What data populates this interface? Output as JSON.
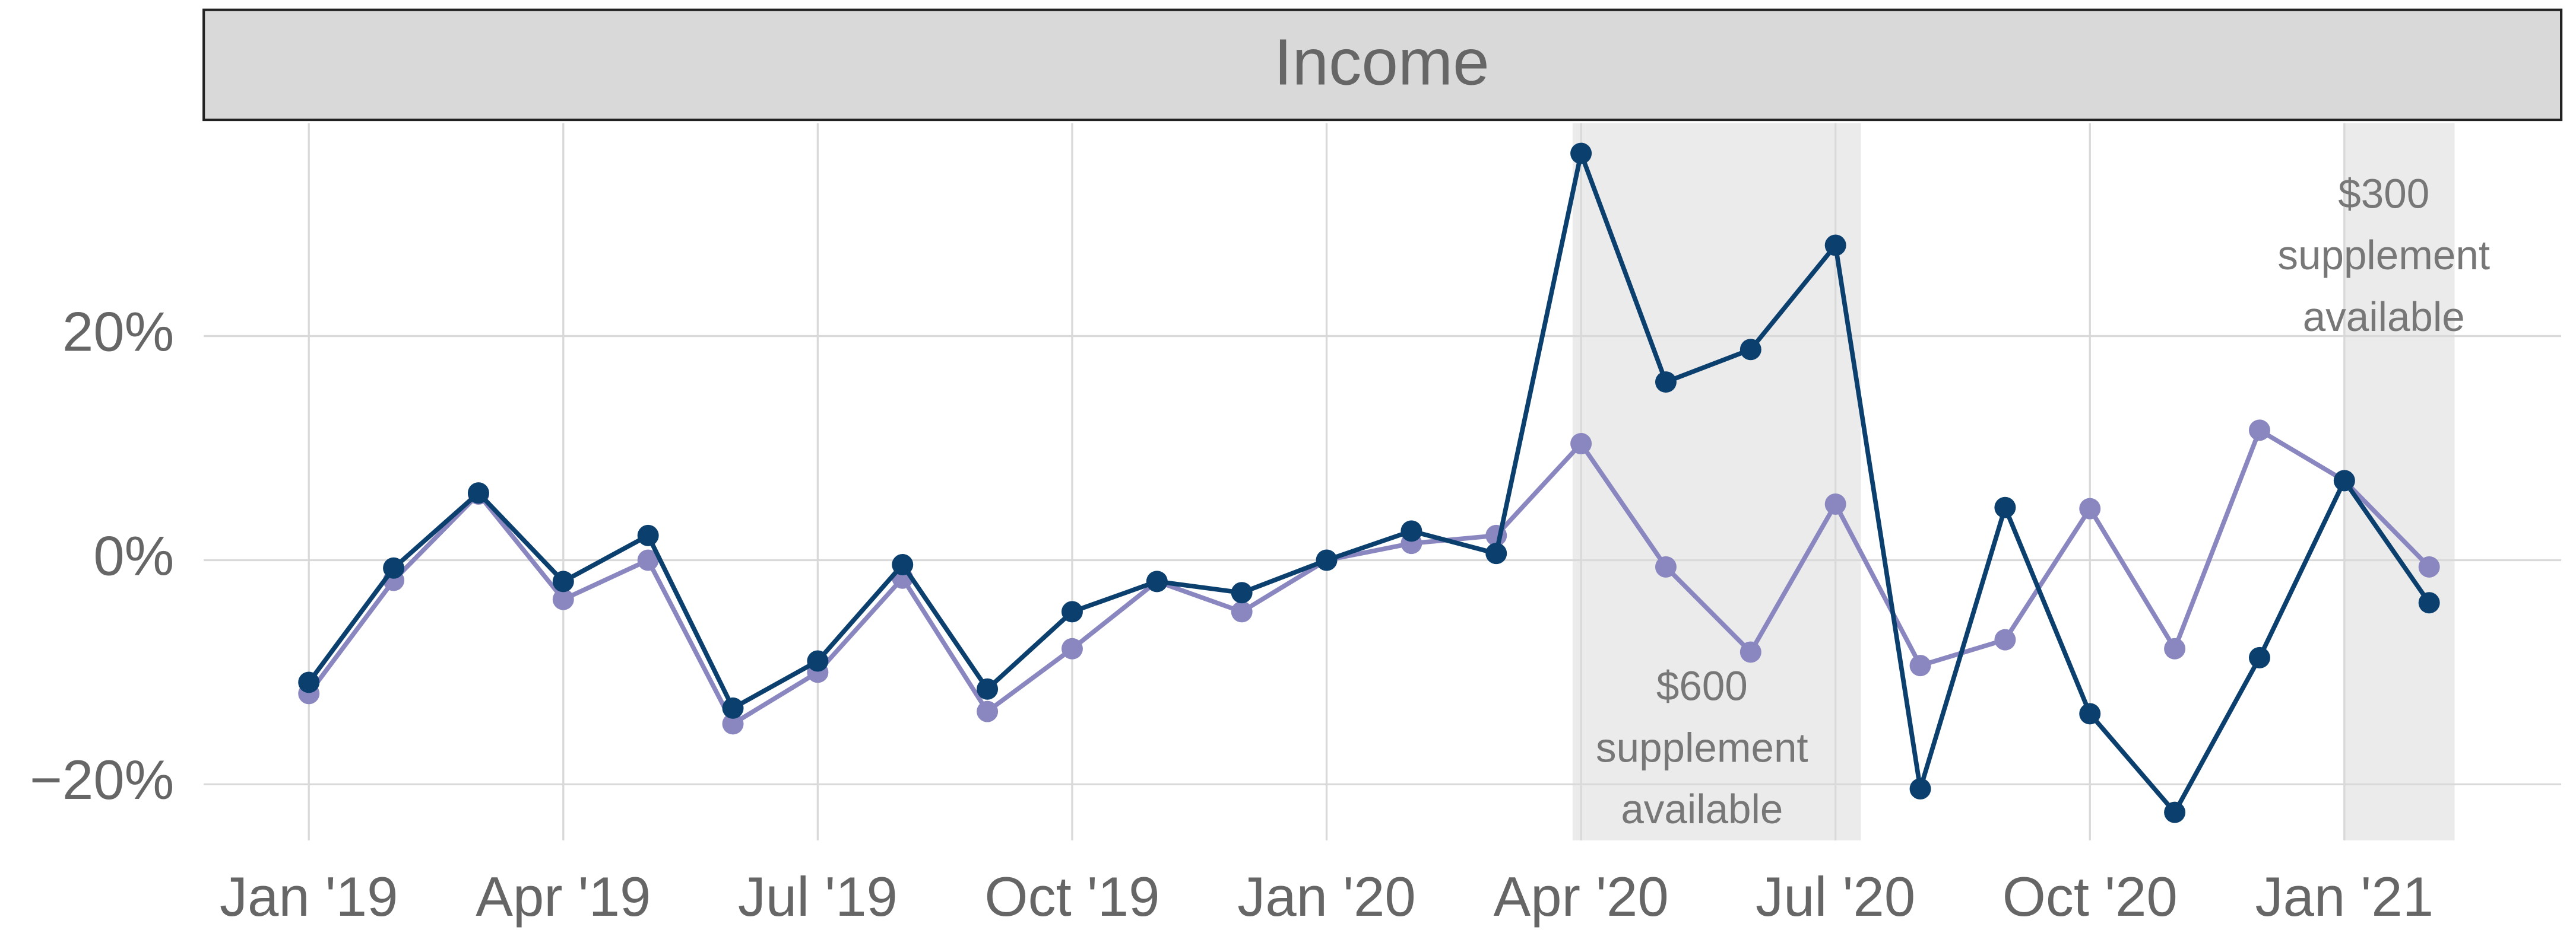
{
  "chart_data": {
    "type": "line",
    "title": "Income",
    "categories": [
      "Jan '19",
      null,
      null,
      "Apr '19",
      null,
      null,
      "Jul '19",
      null,
      null,
      "Oct '19",
      null,
      null,
      "Jan '20",
      null,
      null,
      "Apr '20",
      null,
      null,
      "Jul '20",
      null,
      null,
      "Oct '20",
      null,
      null,
      "Jan '21",
      null
    ],
    "series": [
      {
        "color": "#8a87c0",
        "values": [
          -11.9,
          -1.8,
          5.9,
          -3.5,
          0,
          -14.6,
          -10.0,
          -1.6,
          -13.5,
          -7.9,
          -1.9,
          -4.6,
          0,
          1.5,
          2.2,
          10.4,
          -0.6,
          -8.2,
          5.0,
          -9.4,
          -7.1,
          4.6,
          -7.9,
          11.6,
          7.1,
          -0.6
        ]
      },
      {
        "color": "#0b3f6e",
        "values": [
          -10.9,
          -0.7,
          6.0,
          -1.9,
          2.2,
          -13.2,
          -9.0,
          -0.4,
          -11.5,
          -4.6,
          -1.9,
          -2.9,
          0,
          2.6,
          0.6,
          36.3,
          15.9,
          18.8,
          28.1,
          -20.4,
          4.7,
          -13.7,
          -22.5,
          -8.7,
          7.1,
          -3.8
        ]
      }
    ],
    "ylim": [
      -25,
      39
    ],
    "yticks": [
      {
        "value": -20,
        "label": "−20%"
      },
      {
        "value": 0,
        "label": "0%"
      },
      {
        "value": 20,
        "label": "20%"
      }
    ],
    "grid": true,
    "annotations": [
      {
        "lines": [
          "$600",
          "supplement",
          "available"
        ],
        "x_range": [
          14.9,
          18.3
        ]
      },
      {
        "lines": [
          "$300",
          "supplement",
          "available"
        ],
        "x_range": [
          24,
          25.3
        ]
      }
    ]
  }
}
